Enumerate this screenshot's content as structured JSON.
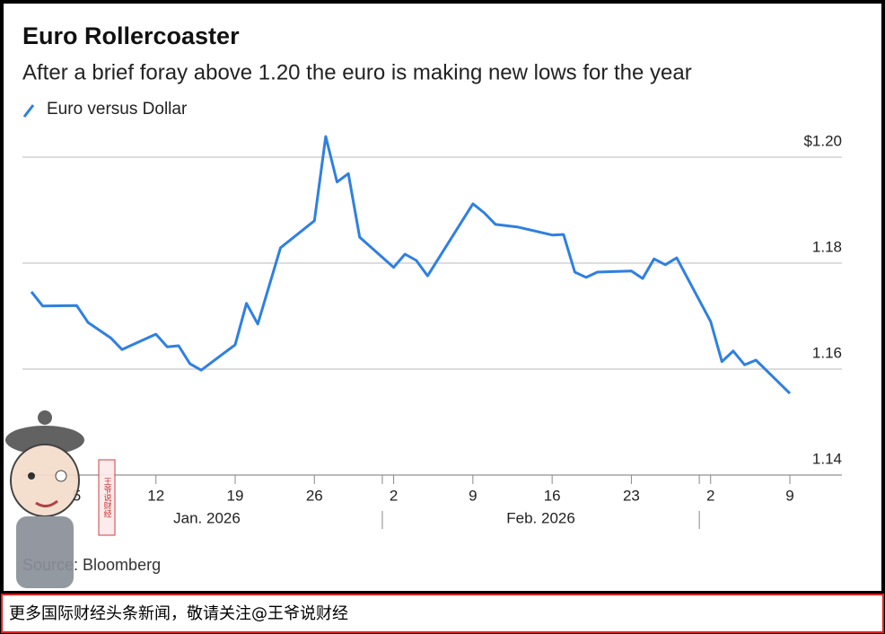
{
  "chart_data": {
    "type": "line",
    "title": "Euro Rollercoaster",
    "subtitle": "After a brief foray above 1.20 the euro is making new lows for the year",
    "source": "Source: Bloomberg",
    "legend": "top-left",
    "grid": true,
    "x": [
      "2026-01-01",
      "2026-01-02",
      "2026-01-05",
      "2026-01-06",
      "2026-01-08",
      "2026-01-09",
      "2026-01-12",
      "2026-01-13",
      "2026-01-14",
      "2026-01-15",
      "2026-01-16",
      "2026-01-19",
      "2026-01-20",
      "2026-01-21",
      "2026-01-23",
      "2026-01-26",
      "2026-01-27",
      "2026-01-28",
      "2026-01-29",
      "2026-01-30",
      "2026-02-02",
      "2026-02-03",
      "2026-02-04",
      "2026-02-05",
      "2026-02-09",
      "2026-02-10",
      "2026-02-11",
      "2026-02-13",
      "2026-02-16",
      "2026-02-17",
      "2026-02-18",
      "2026-02-19",
      "2026-02-20",
      "2026-02-23",
      "2026-02-24",
      "2026-02-25",
      "2026-02-26",
      "2026-02-27",
      "2026-03-02",
      "2026-03-03",
      "2026-03-04",
      "2026-03-05",
      "2026-03-06",
      "2026-03-09"
    ],
    "series": [
      {
        "name": "Euro versus Dollar",
        "color": "#2f80e0",
        "values": [
          1.1746,
          1.1719,
          1.172,
          1.1688,
          1.1659,
          1.1637,
          1.1666,
          1.1642,
          1.1644,
          1.161,
          1.1598,
          1.1646,
          1.1724,
          1.1685,
          1.1829,
          1.188,
          1.2039,
          1.1953,
          1.1969,
          1.1849,
          1.1792,
          1.1817,
          1.1805,
          1.1776,
          1.1912,
          1.1895,
          1.1873,
          1.1868,
          1.1853,
          1.1854,
          1.1783,
          1.1773,
          1.1783,
          1.1785,
          1.1771,
          1.1808,
          1.1797,
          1.181,
          1.169,
          1.1614,
          1.1634,
          1.1608,
          1.1617,
          1.1554
        ]
      }
    ],
    "xlim": [
      "2026-01-01",
      "2026-03-09"
    ],
    "xticks": [
      {
        "value": "2026-01-05",
        "label": "5"
      },
      {
        "value": "2026-01-12",
        "label": "12"
      },
      {
        "value": "2026-01-19",
        "label": "19"
      },
      {
        "value": "2026-01-26",
        "label": "26"
      },
      {
        "value": "2026-02-02",
        "label": "2"
      },
      {
        "value": "2026-02-09",
        "label": "9"
      },
      {
        "value": "2026-02-16",
        "label": "16"
      },
      {
        "value": "2026-02-23",
        "label": "23"
      },
      {
        "value": "2026-03-02",
        "label": "2"
      },
      {
        "value": "2026-03-09",
        "label": "9"
      }
    ],
    "months": [
      {
        "value": "2026-01",
        "label": "Jan. 2026"
      },
      {
        "value": "2026-02",
        "label": "Feb. 2026"
      }
    ],
    "ylim": [
      1.14,
      1.205
    ],
    "yticks": [
      {
        "value": 1.2,
        "label": "$1.20"
      },
      1.18,
      1.16,
      1.14
    ]
  },
  "caption": "更多国际财经头条新闻，敬请关注@王爷说财经",
  "watermark": "王爷说财经"
}
